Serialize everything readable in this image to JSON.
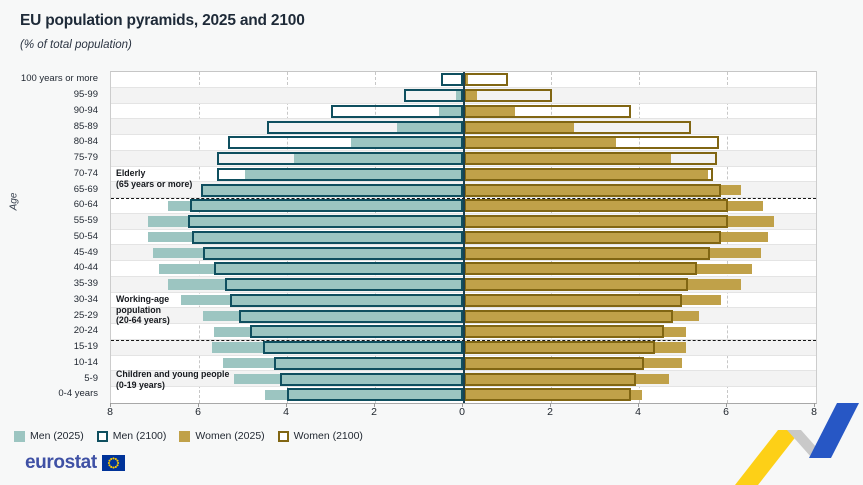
{
  "header": {
    "title": "EU population pyramids, 2025 and 2100",
    "subtitle": "(% of total population)"
  },
  "chart_data": {
    "type": "bar",
    "subtype": "population_pyramid",
    "title": "EU population pyramids, 2025 and 2100",
    "unit": "% of total population",
    "ylabel": "Age",
    "age_groups": [
      "100 years or more",
      "95-99",
      "90-94",
      "85-89",
      "80-84",
      "75-79",
      "70-74",
      "65-69",
      "60-64",
      "55-59",
      "50-54",
      "45-49",
      "40-44",
      "35-39",
      "30-34",
      "25-29",
      "20-24",
      "15-19",
      "10-14",
      "5-9",
      "0-4 years"
    ],
    "series": [
      {
        "name": "Men (2025)",
        "side": "left",
        "style": "fill",
        "values": [
          0.05,
          0.15,
          0.55,
          1.5,
          2.55,
          3.85,
          4.95,
          5.9,
          6.7,
          7.15,
          7.15,
          7.05,
          6.9,
          6.7,
          6.4,
          5.9,
          5.65,
          5.7,
          5.45,
          5.2,
          4.5
        ]
      },
      {
        "name": "Men (2100)",
        "side": "left",
        "style": "outline",
        "values": [
          0.5,
          1.35,
          3.0,
          4.45,
          5.35,
          5.6,
          5.6,
          5.95,
          6.2,
          6.25,
          6.15,
          5.9,
          5.65,
          5.4,
          5.3,
          5.1,
          4.85,
          4.55,
          4.3,
          4.15,
          4.0
        ]
      },
      {
        "name": "Women (2025)",
        "side": "right",
        "style": "fill",
        "values": [
          0.1,
          0.3,
          1.15,
          2.5,
          3.45,
          4.7,
          5.55,
          6.3,
          6.8,
          7.05,
          6.9,
          6.75,
          6.55,
          6.3,
          5.85,
          5.35,
          5.05,
          5.05,
          4.95,
          4.65,
          4.05
        ]
      },
      {
        "name": "Women (2100)",
        "side": "right",
        "style": "outline",
        "values": [
          1.0,
          2.0,
          3.8,
          5.15,
          5.8,
          5.75,
          5.65,
          5.85,
          6.0,
          6.0,
          5.85,
          5.6,
          5.3,
          5.1,
          4.95,
          4.75,
          4.55,
          4.35,
          4.1,
          3.9,
          3.8
        ]
      }
    ],
    "xlim": [
      -8,
      8
    ],
    "x_tick_labels": [
      "8",
      "6",
      "4",
      "2",
      "0",
      "2",
      "4",
      "6",
      "8"
    ],
    "grid": "vertical dashed every 2 units",
    "legend_position": "bottom-left",
    "section_separators_after_group": [
      "65-69",
      "20-24"
    ]
  },
  "annotations": {
    "elderly": {
      "line1": "Elderly",
      "line2": "(65 years or more)"
    },
    "working_age": {
      "line1": "Working-age",
      "line2": "population",
      "line3": "(20-64 years)"
    },
    "children": {
      "line1": "Children and young people",
      "line2": "(0-19 years)"
    }
  },
  "legend": {
    "items": [
      {
        "label": "Men (2025)",
        "swatch": "men-fill"
      },
      {
        "label": "Men (2100)",
        "swatch": "men-outline"
      },
      {
        "label": "Women (2025)",
        "swatch": "women-fill"
      },
      {
        "label": "Women (2100)",
        "swatch": "women-outline"
      }
    ]
  },
  "colors": {
    "men_fill": "#9cc5c1",
    "men_outline": "#0f4f5f",
    "women_fill": "#c0a149",
    "women_outline": "#816613",
    "axis_line": "#1c4150",
    "brand_blue": "#3f51a5",
    "flag_blue": "#003399",
    "star_yellow": "#ffcc00",
    "art_yellow": "#fdd017",
    "art_blue": "#2757c5",
    "art_gray": "#c9c9c9"
  },
  "footer": {
    "brand": "eurostat"
  }
}
